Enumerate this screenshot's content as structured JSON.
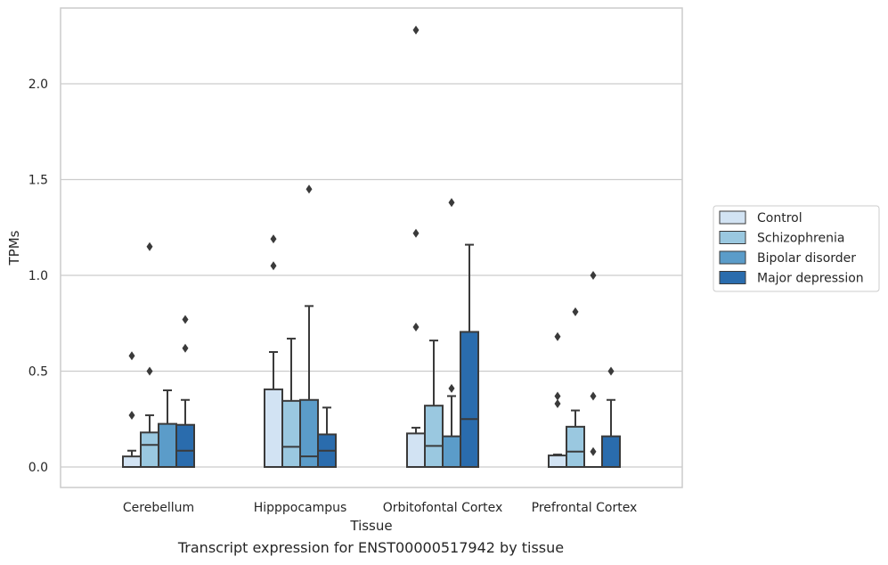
{
  "caption": "Transcript expression for ENST00000517942 by tissue",
  "chart_data": {
    "type": "box",
    "xlabel": "Tissue",
    "ylabel": "TPMs",
    "ylim": [
      -0.11,
      2.39
    ],
    "yticks": [
      0.0,
      0.5,
      1.0,
      1.5,
      2.0
    ],
    "ytick_labels": [
      "0.0",
      "0.5",
      "1.0",
      "1.5",
      "2.0"
    ],
    "grid": "horizontal",
    "legend_position": "right",
    "categories": [
      "Cerebellum",
      "Hipppocampus",
      "Orbitofontal Cortex",
      "Prefrontal Cortex"
    ],
    "series": [
      {
        "name": "Control",
        "color": "#d2e3f3",
        "boxes": [
          {
            "category": "Cerebellum",
            "whisker_low": 0.0,
            "q1": 0.0,
            "median": 0.0,
            "q3": 0.055,
            "whisker_high": 0.085,
            "outliers": [
              0.27,
              0.58
            ]
          },
          {
            "category": "Hipppocampus",
            "whisker_low": 0.0,
            "q1": 0.0,
            "median": 0.0,
            "q3": 0.405,
            "whisker_high": 0.6,
            "outliers": [
              1.05,
              1.19
            ]
          },
          {
            "category": "Orbitofontal Cortex",
            "whisker_low": 0.0,
            "q1": 0.0,
            "median": 0.0,
            "q3": 0.175,
            "whisker_high": 0.205,
            "outliers": [
              0.73,
              1.22,
              2.28
            ]
          },
          {
            "category": "Prefrontal Cortex",
            "whisker_low": 0.0,
            "q1": 0.0,
            "median": 0.0,
            "q3": 0.06,
            "whisker_high": 0.065,
            "outliers": [
              0.33,
              0.37,
              0.68
            ]
          }
        ]
      },
      {
        "name": "Schizophrenia",
        "color": "#9ac8e0",
        "boxes": [
          {
            "category": "Cerebellum",
            "whisker_low": 0.0,
            "q1": 0.0,
            "median": 0.115,
            "q3": 0.18,
            "whisker_high": 0.27,
            "outliers": [
              0.5,
              1.15
            ]
          },
          {
            "category": "Hipppocampus",
            "whisker_low": 0.0,
            "q1": 0.0,
            "median": 0.105,
            "q3": 0.345,
            "whisker_high": 0.67,
            "outliers": []
          },
          {
            "category": "Orbitofontal Cortex",
            "whisker_low": 0.0,
            "q1": 0.0,
            "median": 0.11,
            "q3": 0.32,
            "whisker_high": 0.66,
            "outliers": []
          },
          {
            "category": "Prefrontal Cortex",
            "whisker_low": 0.0,
            "q1": 0.0,
            "median": 0.08,
            "q3": 0.21,
            "whisker_high": 0.295,
            "outliers": [
              0.81
            ]
          }
        ]
      },
      {
        "name": "Bipolar disorder",
        "color": "#5b9cc9",
        "boxes": [
          {
            "category": "Cerebellum",
            "whisker_low": 0.0,
            "q1": 0.0,
            "median": 0.0,
            "q3": 0.225,
            "whisker_high": 0.4,
            "outliers": []
          },
          {
            "category": "Hipppocampus",
            "whisker_low": 0.0,
            "q1": 0.0,
            "median": 0.055,
            "q3": 0.35,
            "whisker_high": 0.84,
            "outliers": [
              1.45
            ]
          },
          {
            "category": "Orbitofontal Cortex",
            "whisker_low": 0.0,
            "q1": 0.0,
            "median": 0.0,
            "q3": 0.16,
            "whisker_high": 0.37,
            "outliers": [
              0.41,
              1.38
            ]
          },
          {
            "category": "Prefrontal Cortex",
            "whisker_low": 0.0,
            "q1": 0.0,
            "median": 0.0,
            "q3": 0.0,
            "whisker_high": 0.0,
            "outliers": [
              0.08,
              0.37,
              1.0
            ]
          }
        ]
      },
      {
        "name": "Major depression",
        "color": "#2a6cad",
        "boxes": [
          {
            "category": "Cerebellum",
            "whisker_low": 0.0,
            "q1": 0.0,
            "median": 0.085,
            "q3": 0.22,
            "whisker_high": 0.35,
            "outliers": [
              0.62,
              0.77
            ]
          },
          {
            "category": "Hipppocampus",
            "whisker_low": 0.0,
            "q1": 0.0,
            "median": 0.085,
            "q3": 0.17,
            "whisker_high": 0.31,
            "outliers": []
          },
          {
            "category": "Orbitofontal Cortex",
            "whisker_low": 0.0,
            "q1": 0.0,
            "median": 0.25,
            "q3": 0.705,
            "whisker_high": 1.16,
            "outliers": []
          },
          {
            "category": "Prefrontal Cortex",
            "whisker_low": 0.0,
            "q1": 0.0,
            "median": 0.0,
            "q3": 0.16,
            "whisker_high": 0.35,
            "outliers": [
              0.5
            ]
          }
        ]
      }
    ]
  }
}
